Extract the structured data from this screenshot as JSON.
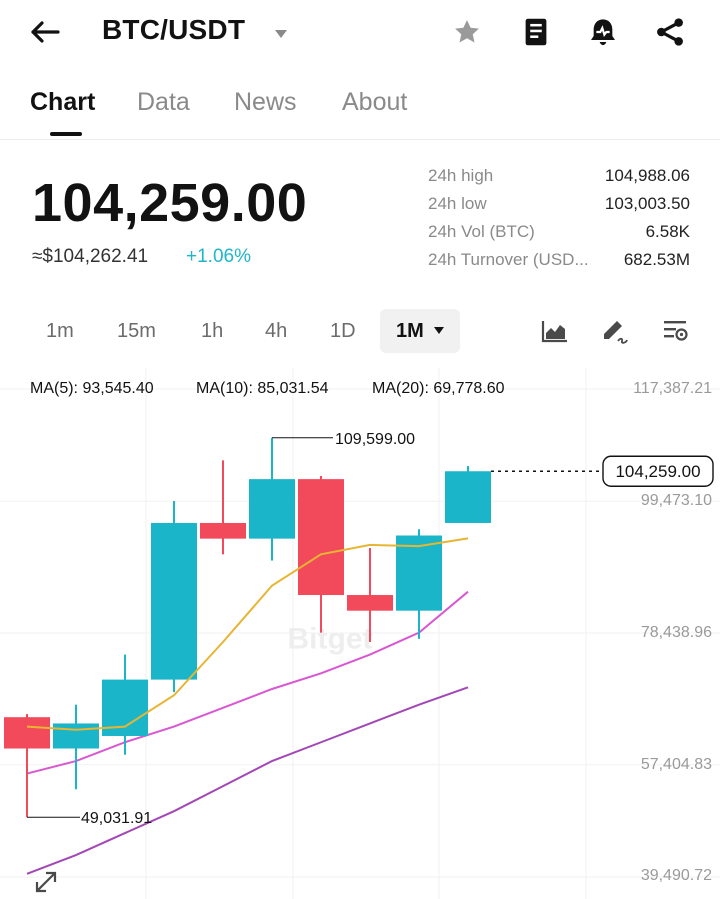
{
  "header": {
    "pair": "BTC/USDT",
    "icons": [
      "back-arrow-icon",
      "caret-down-icon",
      "star-icon",
      "book-icon",
      "alert-icon",
      "share-icon"
    ]
  },
  "tabs": [
    "Chart",
    "Data",
    "News",
    "About"
  ],
  "price": {
    "last": "104,259.00",
    "usd": "≈$104,262.41",
    "change": "+1.06%",
    "change_color": "#1fb6c9"
  },
  "stats": [
    {
      "label": "24h high",
      "value": "104,988.06"
    },
    {
      "label": "24h low",
      "value": "103,003.50"
    },
    {
      "label": "24h Vol (BTC)",
      "value": "6.58K"
    },
    {
      "label": "24h Turnover (USD...",
      "value": "682.53M"
    }
  ],
  "timeframes": [
    "1m",
    "15m",
    "1h",
    "4h",
    "1D"
  ],
  "timeframe_selected": "1M",
  "chart_tools": [
    "area-chart-icon",
    "draw-icon",
    "indicator-settings-icon"
  ],
  "ma": {
    "ma5": "MA(5): 93,545.40",
    "ma10": "MA(10): 85,031.54",
    "ma20": "MA(20): 69,778.60",
    "colors": {
      "ma5": "#e6b532",
      "ma10": "#d957d0",
      "ma20": "#a247b5"
    }
  },
  "y_axis_labels": [
    "117,387.21",
    "99,473.10",
    "78,438.96",
    "57,404.83",
    "39,490.72"
  ],
  "last_price_tag": "104,259.00",
  "high_marker": "109,599.00",
  "low_marker": "49,031.91",
  "watermark": "Bitget",
  "colors": {
    "up": "#1bb5c9",
    "down": "#f2495b"
  },
  "chart_data": {
    "type": "candlestick",
    "ylim": [
      39490.72,
      117387.21
    ],
    "y_ticks": [
      117387.21,
      99473.1,
      78438.96,
      57404.83,
      39490.72
    ],
    "candles": [
      {
        "o": 65000,
        "c": 60000,
        "h": 65500,
        "l": 49031.91
      },
      {
        "o": 60000,
        "c": 64000,
        "h": 67000,
        "l": 53500
      },
      {
        "o": 62000,
        "c": 71000,
        "h": 75000,
        "l": 59000
      },
      {
        "o": 71000,
        "c": 96000,
        "h": 99500,
        "l": 69000
      },
      {
        "o": 96000,
        "c": 93500,
        "h": 106000,
        "l": 91000
      },
      {
        "o": 93500,
        "c": 103000,
        "h": 109599.0,
        "l": 90000
      },
      {
        "o": 103000,
        "c": 84500,
        "h": 103500,
        "l": 78500
      },
      {
        "o": 84500,
        "c": 82000,
        "h": 92000,
        "l": 77000
      },
      {
        "o": 82000,
        "c": 94000,
        "h": 95000,
        "l": 77500
      },
      {
        "o": 96000,
        "c": 104259.0,
        "h": 105100,
        "l": 96000
      }
    ],
    "ma5": [
      63500,
      63000,
      63500,
      68500,
      77000,
      86000,
      91000,
      92500,
      92300,
      93545.4
    ],
    "ma10": [
      56000,
      58000,
      61000,
      63500,
      66500,
      69500,
      72000,
      75000,
      78500,
      85031.54
    ],
    "ma20": [
      40000,
      43000,
      46500,
      50000,
      54000,
      58000,
      61000,
      64000,
      67000,
      69778.6
    ]
  }
}
